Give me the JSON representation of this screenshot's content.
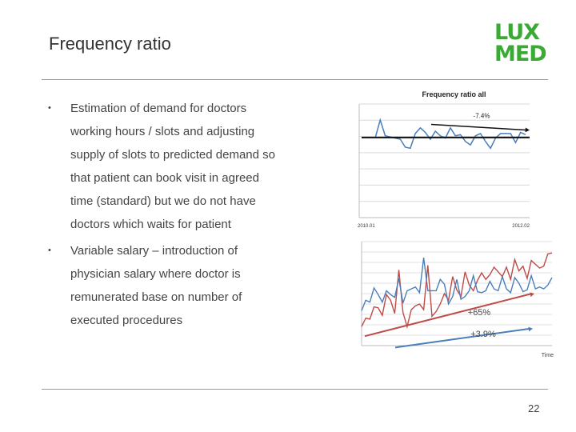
{
  "slide": {
    "title": "Frequency ratio",
    "logo_lines": [
      "LUX",
      "MED"
    ],
    "bullets": [
      "Estimation of demand for doctors working hours / slots and adjusting supply of slots to predicted demand so that patient can book visit in agreed time (standard) but we do not have doctors which waits for patient",
      "Variable salary – introduction of physician salary where doctor is remunerated base on number of executed procedures"
    ],
    "bullet_symbol": "•",
    "page_number": "22",
    "colors": {
      "logo": "#3aaa35",
      "series_blue": "#4a7ebb",
      "series_red": "#be4b48"
    }
  },
  "chart_data": [
    {
      "type": "line",
      "title": "Frequency ratio all",
      "annotation": "-7.4%",
      "x_labels": [
        "2010.01",
        "2012.02"
      ],
      "grid": true,
      "series": [
        {
          "values": [
            0.7,
            0.86,
            0.72,
            0.71,
            0.7,
            0.69,
            0.62,
            0.61,
            0.74,
            0.79,
            0.75,
            0.69,
            0.76,
            0.72,
            0.7,
            0.79,
            0.72,
            0.73,
            0.67,
            0.64,
            0.72,
            0.74,
            0.67,
            0.61,
            0.7,
            0.74,
            0.74,
            0.74,
            0.66,
            0.75,
            0.73
          ]
        }
      ],
      "trend_line": {
        "from": 0.705,
        "to": 0.705
      },
      "trend_arrow": {
        "from": 0.82,
        "to": 0.77
      },
      "ylim": [
        0,
        1
      ]
    },
    {
      "type": "line",
      "annotations": [
        "+65%",
        "+3.9%"
      ],
      "x_label": "Time",
      "grid": true,
      "series": [
        {
          "values": [
            0.37,
            0.48,
            0.46,
            0.61,
            0.54,
            0.46,
            0.58,
            0.54,
            0.51,
            0.71,
            0.45,
            0.58,
            0.6,
            0.62,
            0.56,
            0.93,
            0.58,
            0.58,
            0.58,
            0.7,
            0.65,
            0.44,
            0.52,
            0.7,
            0.49,
            0.52,
            0.58,
            0.74,
            0.57,
            0.56,
            0.58,
            0.68,
            0.6,
            0.58,
            0.73,
            0.6,
            0.56,
            0.72,
            0.66,
            0.57,
            0.59,
            0.74,
            0.6,
            0.62,
            0.6,
            0.64,
            0.72
          ]
        },
        {
          "values": [
            0.2,
            0.29,
            0.28,
            0.41,
            0.4,
            0.32,
            0.54,
            0.48,
            0.34,
            0.8,
            0.35,
            0.2,
            0.38,
            0.42,
            0.44,
            0.38,
            0.85,
            0.31,
            0.36,
            0.44,
            0.55,
            0.48,
            0.73,
            0.59,
            0.52,
            0.78,
            0.64,
            0.58,
            0.69,
            0.77,
            0.7,
            0.75,
            0.83,
            0.78,
            0.73,
            0.83,
            0.7,
            0.91,
            0.79,
            0.84,
            0.71,
            0.9,
            0.86,
            0.82,
            0.84,
            0.97,
            0.98
          ]
        }
      ],
      "trend_red": {
        "from": 0.1,
        "to": 0.55
      },
      "trend_blue": {
        "from": -0.02,
        "to": 0.18
      },
      "ylim": [
        0,
        1.1
      ]
    }
  ]
}
